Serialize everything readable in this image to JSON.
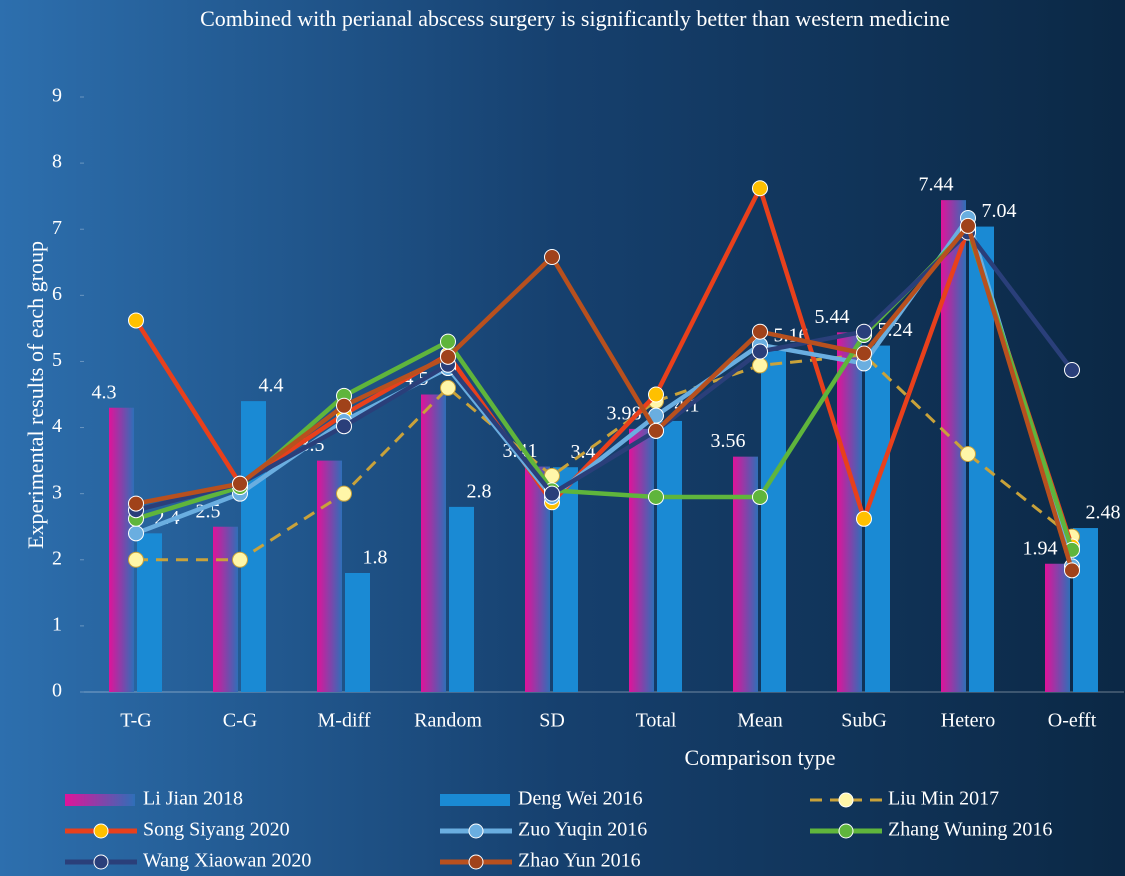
{
  "chart_data": {
    "type": "bar_line",
    "title": "Combined with perianal abscess surgery is significantly better than western medicine",
    "x_label": "Comparison type",
    "y_label": "Experimental results of each group",
    "categories": [
      "T-G",
      "C-G",
      "M-diff",
      "Random",
      "SD",
      "Total",
      "Mean",
      "SubG",
      "Hetero",
      "O-efft"
    ],
    "ylim": [
      0,
      9
    ],
    "yticks": [
      0,
      1,
      2,
      3,
      4,
      5,
      6,
      7,
      8,
      9
    ],
    "series": [
      {
        "name": "Li Jian 2018",
        "kind": "bar",
        "color": "#e0139a",
        "color2": "#2f6fb8",
        "values": [
          4.3,
          2.5,
          3.5,
          4.5,
          3.41,
          3.98,
          3.56,
          5.44,
          7.44,
          1.94
        ]
      },
      {
        "name": "Deng Wei 2016",
        "kind": "bar",
        "color": "#1a8ad4",
        "values": [
          2.4,
          4.4,
          1.8,
          2.8,
          3.4,
          4.1,
          5.16,
          5.24,
          7.04,
          2.48
        ]
      },
      {
        "name": "Liu Min 2017",
        "kind": "line",
        "dashed": true,
        "color": "#c9a23a",
        "marker_color": "#fff6a8",
        "values": [
          2.0,
          2.0,
          3.0,
          4.6,
          3.27,
          4.4,
          4.94,
          5.1,
          3.6,
          2.35
        ]
      },
      {
        "name": "Song Siyang 2020",
        "kind": "line",
        "color": "#e8401c",
        "marker_color": "#ffc000",
        "values": [
          5.62,
          3.15,
          4.2,
          5.1,
          2.87,
          4.5,
          7.62,
          2.62,
          7.0,
          2.2
        ]
      },
      {
        "name": "Zuo Yuqin 2016",
        "kind": "line",
        "color": "#6aaee0",
        "marker_color": "#6aaee0",
        "values": [
          2.4,
          3.0,
          4.1,
          4.9,
          2.95,
          4.18,
          5.25,
          4.97,
          7.17,
          1.9
        ]
      },
      {
        "name": "Zhang Wuning 2016",
        "kind": "line",
        "color": "#5fb53c",
        "marker_color": "#5fb53c",
        "values": [
          2.62,
          3.1,
          4.48,
          5.3,
          3.05,
          2.95,
          2.95,
          5.4,
          7.0,
          2.15
        ]
      },
      {
        "name": "Wang Xiaowan 2020",
        "kind": "line",
        "color": "#2a3f7a",
        "marker_color": "#2a3f7a",
        "values": [
          2.75,
          3.15,
          4.02,
          4.95,
          3.0,
          3.95,
          5.15,
          5.45,
          6.95,
          4.87
        ]
      },
      {
        "name": "Zhao Yun 2016",
        "kind": "line",
        "color": "#b8501e",
        "marker_color": "#a0421a",
        "values": [
          2.85,
          3.15,
          4.33,
          5.07,
          6.58,
          3.95,
          5.45,
          5.12,
          7.05,
          1.84
        ]
      }
    ]
  }
}
